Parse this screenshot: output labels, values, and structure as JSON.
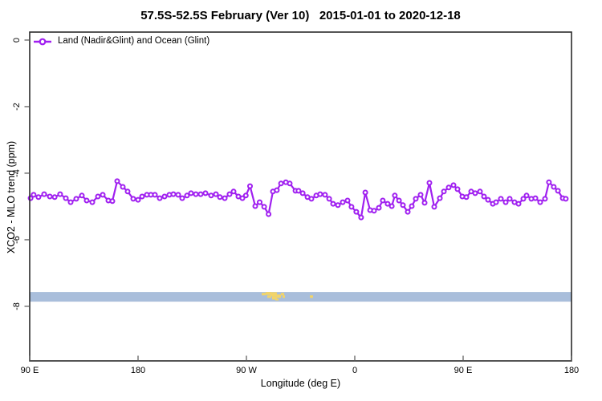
{
  "title": "57.5S-52.5S February (Ver 10)   2015-01-01 to 2020-12-18",
  "legend": {
    "label": "Land (Nadir&Glint) and Ocean (Glint)"
  },
  "chart_data": {
    "type": "line",
    "title": "57.5S-52.5S February (Ver 10)   2015-01-01 to 2020-12-18",
    "xlabel": "Longitude (deg E)",
    "ylabel": "XCO2 - MLO trend (ppm)",
    "xlim": [
      90,
      540
    ],
    "ylim": [
      0.24,
      -9.64
    ],
    "grid": false,
    "legend_position": "top-left",
    "x_ticks": [
      {
        "lon": 90,
        "label": "90 E"
      },
      {
        "lon": 180,
        "label": "180"
      },
      {
        "lon": 270,
        "label": "90 W"
      },
      {
        "lon": 360,
        "label": "0"
      },
      {
        "lon": 450,
        "label": "90 E"
      },
      {
        "lon": 540,
        "label": "180"
      }
    ],
    "y_ticks": [
      {
        "value": 0,
        "label": "0"
      },
      {
        "value": -2,
        "label": "-2"
      },
      {
        "value": -4,
        "label": "-4"
      },
      {
        "value": -6,
        "label": "-6"
      },
      {
        "value": -8,
        "label": "-8"
      }
    ],
    "map_strip": {
      "ocean_color": "#a9bedb",
      "land_color": "#f2d469",
      "ppm_top": -7.57,
      "ppm_bottom": -7.86,
      "land_patches": [
        {
          "lon0": 282.7,
          "lon1": 286.0,
          "t": 0.09,
          "b": 0.35
        },
        {
          "lon0": 286.0,
          "lon1": 290.7,
          "t": 0.0,
          "b": 0.3
        },
        {
          "lon0": 290.0,
          "lon1": 295.3,
          "t": 0.02,
          "b": 0.43
        },
        {
          "lon0": 287.3,
          "lon1": 290.7,
          "t": 0.35,
          "b": 0.61
        },
        {
          "lon0": 291.3,
          "lon1": 295.3,
          "t": 0.43,
          "b": 0.78
        },
        {
          "lon0": 295.3,
          "lon1": 298.7,
          "t": 0.26,
          "b": 0.61
        },
        {
          "lon0": 298.7,
          "lon1": 301.3,
          "t": 0.09,
          "b": 0.35
        },
        {
          "lon0": 294.0,
          "lon1": 296.7,
          "t": 0.7,
          "b": 0.87
        },
        {
          "lon0": 300.0,
          "lon1": 302.0,
          "t": 0.35,
          "b": 0.61
        },
        {
          "lon0": 322.7,
          "lon1": 325.3,
          "t": 0.35,
          "b": 0.61
        }
      ]
    },
    "series": [
      {
        "name": "Land (Nadir&Glint) and Ocean (Glint)",
        "color": "#A020F0",
        "marker": "open-circle",
        "points": [
          [
            90.7,
            -4.75
          ],
          [
            93.3,
            -4.65
          ],
          [
            97.3,
            -4.72
          ],
          [
            102,
            -4.63
          ],
          [
            106.7,
            -4.7
          ],
          [
            110.7,
            -4.72
          ],
          [
            115.3,
            -4.63
          ],
          [
            120,
            -4.75
          ],
          [
            124,
            -4.87
          ],
          [
            128.7,
            -4.77
          ],
          [
            133.3,
            -4.67
          ],
          [
            137.3,
            -4.82
          ],
          [
            142,
            -4.87
          ],
          [
            146.7,
            -4.7
          ],
          [
            150.7,
            -4.65
          ],
          [
            155.3,
            -4.82
          ],
          [
            158.7,
            -4.84
          ],
          [
            162.7,
            -4.24
          ],
          [
            167.3,
            -4.41
          ],
          [
            171.3,
            -4.55
          ],
          [
            176,
            -4.77
          ],
          [
            180,
            -4.8
          ],
          [
            183.3,
            -4.7
          ],
          [
            187.3,
            -4.65
          ],
          [
            190.7,
            -4.65
          ],
          [
            194,
            -4.65
          ],
          [
            198,
            -4.75
          ],
          [
            202,
            -4.7
          ],
          [
            206,
            -4.65
          ],
          [
            209.3,
            -4.63
          ],
          [
            213.3,
            -4.65
          ],
          [
            216.7,
            -4.75
          ],
          [
            220.7,
            -4.67
          ],
          [
            224,
            -4.6
          ],
          [
            228,
            -4.63
          ],
          [
            232,
            -4.63
          ],
          [
            236,
            -4.6
          ],
          [
            240.7,
            -4.67
          ],
          [
            244.7,
            -4.63
          ],
          [
            248,
            -4.72
          ],
          [
            252,
            -4.75
          ],
          [
            256,
            -4.63
          ],
          [
            259.3,
            -4.55
          ],
          [
            263.3,
            -4.7
          ],
          [
            266.7,
            -4.75
          ],
          [
            269.5,
            -4.67
          ],
          [
            273,
            -4.39
          ],
          [
            277.3,
            -4.99
          ],
          [
            281,
            -4.87
          ],
          [
            284.7,
            -5.01
          ],
          [
            288.4,
            -5.23
          ],
          [
            292,
            -4.55
          ],
          [
            295.3,
            -4.51
          ],
          [
            298.7,
            -4.31
          ],
          [
            302.7,
            -4.27
          ],
          [
            306,
            -4.31
          ],
          [
            310.7,
            -4.53
          ],
          [
            313.3,
            -4.53
          ],
          [
            316.7,
            -4.6
          ],
          [
            320.7,
            -4.72
          ],
          [
            324,
            -4.77
          ],
          [
            328,
            -4.67
          ],
          [
            331.3,
            -4.63
          ],
          [
            335.3,
            -4.65
          ],
          [
            338.7,
            -4.77
          ],
          [
            342,
            -4.92
          ],
          [
            346,
            -4.96
          ],
          [
            350,
            -4.87
          ],
          [
            354,
            -4.82
          ],
          [
            357.3,
            -5.01
          ],
          [
            361.3,
            -5.16
          ],
          [
            365.3,
            -5.33
          ],
          [
            368.7,
            -4.58
          ],
          [
            372.7,
            -5.11
          ],
          [
            376,
            -5.13
          ],
          [
            380,
            -5.04
          ],
          [
            383.3,
            -4.82
          ],
          [
            387.3,
            -4.92
          ],
          [
            390.7,
            -4.99
          ],
          [
            393.3,
            -4.67
          ],
          [
            396.7,
            -4.82
          ],
          [
            400,
            -4.96
          ],
          [
            404,
            -5.16
          ],
          [
            407.3,
            -4.99
          ],
          [
            410.7,
            -4.77
          ],
          [
            414.7,
            -4.65
          ],
          [
            418,
            -4.89
          ],
          [
            422,
            -4.29
          ],
          [
            426,
            -5.01
          ],
          [
            430.7,
            -4.75
          ],
          [
            434,
            -4.55
          ],
          [
            438,
            -4.43
          ],
          [
            442,
            -4.36
          ],
          [
            445.3,
            -4.48
          ],
          [
            449.3,
            -4.7
          ],
          [
            452.7,
            -4.72
          ],
          [
            456.7,
            -4.55
          ],
          [
            460,
            -4.6
          ],
          [
            464,
            -4.55
          ],
          [
            467.3,
            -4.7
          ],
          [
            470.7,
            -4.8
          ],
          [
            474.7,
            -4.92
          ],
          [
            477.3,
            -4.87
          ],
          [
            481.3,
            -4.77
          ],
          [
            485.3,
            -4.87
          ],
          [
            488.7,
            -4.77
          ],
          [
            492.7,
            -4.87
          ],
          [
            496,
            -4.92
          ],
          [
            500,
            -4.77
          ],
          [
            502.7,
            -4.67
          ],
          [
            506.7,
            -4.77
          ],
          [
            510,
            -4.75
          ],
          [
            514,
            -4.87
          ],
          [
            518,
            -4.77
          ],
          [
            521.3,
            -4.27
          ],
          [
            525.3,
            -4.41
          ],
          [
            528.7,
            -4.53
          ],
          [
            532.7,
            -4.75
          ],
          [
            535.3,
            -4.77
          ]
        ]
      }
    ]
  },
  "colors": {
    "series": "#A020F0",
    "axis": "#2b2b2b",
    "ocean_strip": "#a9bedb",
    "land_patch": "#f2d469",
    "background": "#ffffff"
  }
}
